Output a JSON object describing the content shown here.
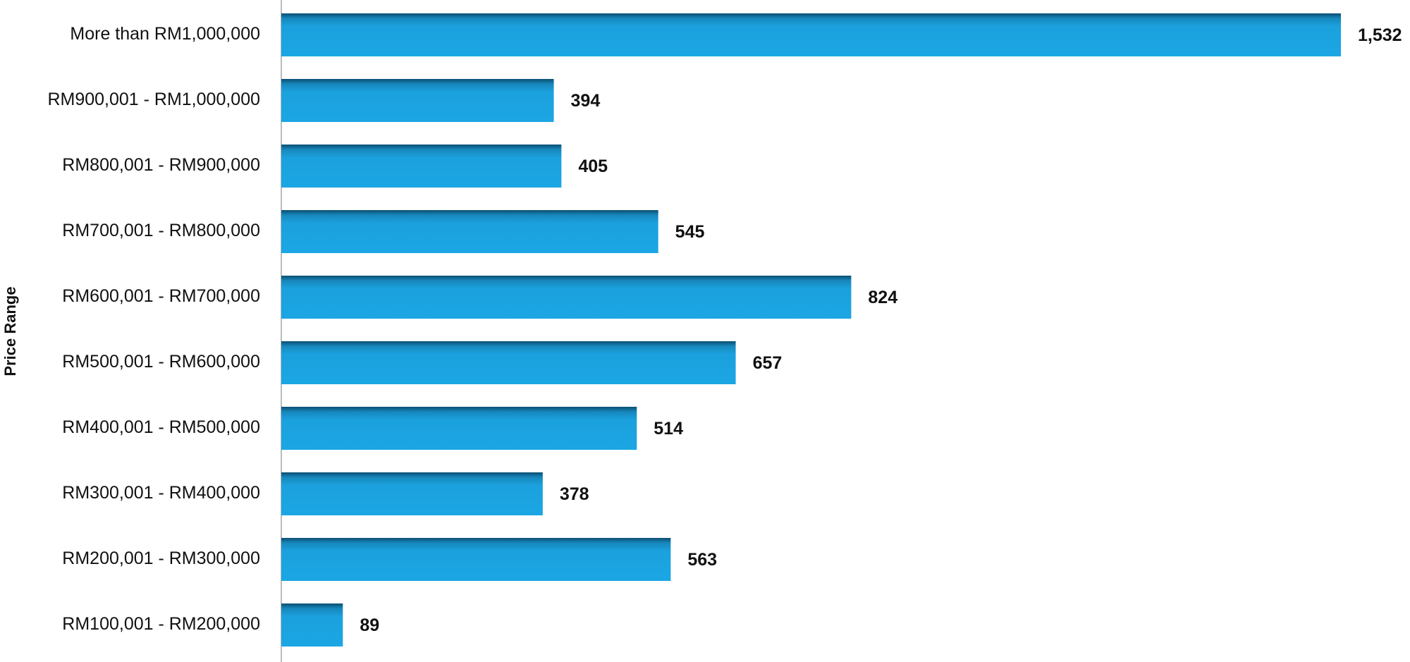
{
  "chart_data": {
    "type": "bar",
    "orientation": "horizontal",
    "y_label": "Price Range",
    "categories": [
      "More than RM1,000,000",
      "RM900,001 - RM1,000,000",
      "RM800,001 - RM900,000",
      "RM700,001 - RM800,000",
      "RM600,001 - RM700,000",
      "RM500,001 - RM600,000",
      "RM400,001 - RM500,000",
      "RM300,001 - RM400,000",
      "RM200,001 - RM300,000",
      "RM100,001 - RM200,000"
    ],
    "values": [
      1532,
      394,
      405,
      545,
      824,
      657,
      514,
      378,
      563,
      89
    ],
    "value_labels": [
      "1,532",
      "394",
      "405",
      "545",
      "824",
      "657",
      "514",
      "378",
      "563",
      "89"
    ],
    "color": "#1ba1dd"
  }
}
